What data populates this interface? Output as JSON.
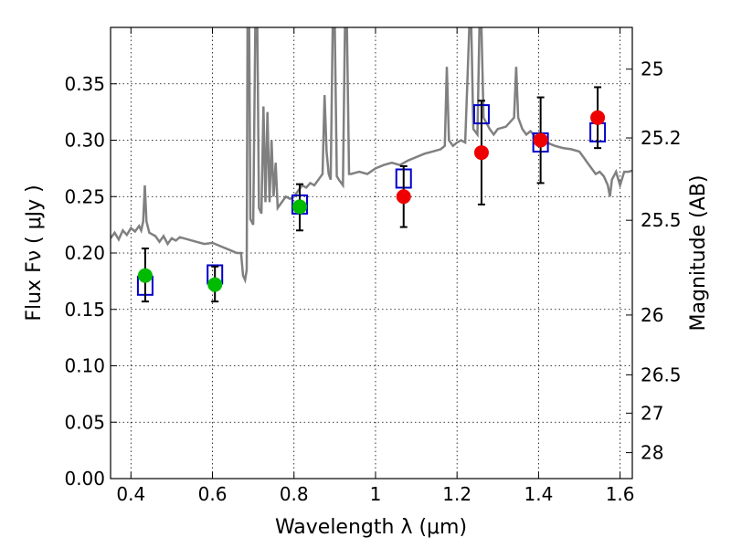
{
  "chart_data": {
    "type": "scatter",
    "xlabel": "Wavelength  λ (μm)",
    "ylabel": "Flux  Fν  ( μJy )",
    "ylabel_right": "Magnitude (AB)",
    "xlim": [
      0.35,
      1.63
    ],
    "ylim": [
      0.0,
      0.4
    ],
    "grid": true,
    "x_ticks": [
      0.4,
      0.6,
      0.8,
      1.0,
      1.2,
      1.4,
      1.6
    ],
    "x_tick_labels": [
      "0.4",
      "0.6",
      "0.8",
      "1",
      "1.2",
      "1.4",
      "1.6"
    ],
    "y_ticks": [
      0.0,
      0.05,
      0.1,
      0.15,
      0.2,
      0.25,
      0.3,
      0.35
    ],
    "y_tick_labels": [
      "0.00",
      "0.05",
      "0.10",
      "0.15",
      "0.20",
      "0.25",
      "0.30",
      "0.35"
    ],
    "right_axis_ticks": [
      {
        "label": "25",
        "flux": 0.363
      },
      {
        "label": "25.2",
        "flux": 0.302
      },
      {
        "label": "25.5",
        "flux": 0.229
      },
      {
        "label": "26",
        "flux": 0.145
      },
      {
        "label": "26.5",
        "flux": 0.092
      },
      {
        "label": "27",
        "flux": 0.058
      },
      {
        "label": "28",
        "flux": 0.023
      }
    ],
    "series": [
      {
        "style": "green-circles",
        "color": "#00bb00",
        "points": [
          {
            "x": 0.435,
            "y": 0.18,
            "err_lo": 0.157,
            "err_hi": 0.204
          },
          {
            "x": 0.606,
            "y": 0.172,
            "err_lo": 0.157,
            "err_hi": 0.188
          },
          {
            "x": 0.814,
            "y": 0.241,
            "err_lo": 0.22,
            "err_hi": 0.261
          }
        ]
      },
      {
        "style": "red-circles",
        "color": "#ee0000",
        "points": [
          {
            "x": 1.069,
            "y": 0.25,
            "err_lo": 0.223,
            "err_hi": 0.277
          },
          {
            "x": 1.26,
            "y": 0.289,
            "err_lo": 0.243,
            "err_hi": 0.335
          },
          {
            "x": 1.405,
            "y": 0.3,
            "err_lo": 0.262,
            "err_hi": 0.338
          },
          {
            "x": 1.545,
            "y": 0.32,
            "err_lo": 0.293,
            "err_hi": 0.347
          }
        ]
      },
      {
        "style": "blue-open-squares",
        "color": "#0000cc",
        "points": [
          {
            "x": 0.435,
            "y": 0.171
          },
          {
            "x": 0.606,
            "y": 0.181
          },
          {
            "x": 0.814,
            "y": 0.243
          },
          {
            "x": 1.069,
            "y": 0.266
          },
          {
            "x": 1.26,
            "y": 0.323
          },
          {
            "x": 1.405,
            "y": 0.298
          },
          {
            "x": 1.545,
            "y": 0.307
          }
        ]
      },
      {
        "style": "gray-line",
        "color": "#808080",
        "points": [
          [
            0.35,
            0.213
          ],
          [
            0.36,
            0.218
          ],
          [
            0.37,
            0.212
          ],
          [
            0.38,
            0.22
          ],
          [
            0.39,
            0.216
          ],
          [
            0.4,
            0.222
          ],
          [
            0.41,
            0.219
          ],
          [
            0.42,
            0.224
          ],
          [
            0.425,
            0.22
          ],
          [
            0.43,
            0.228
          ],
          [
            0.434,
            0.26
          ],
          [
            0.438,
            0.228
          ],
          [
            0.445,
            0.218
          ],
          [
            0.46,
            0.215
          ],
          [
            0.47,
            0.21
          ],
          [
            0.48,
            0.215
          ],
          [
            0.49,
            0.208
          ],
          [
            0.5,
            0.213
          ],
          [
            0.51,
            0.211
          ],
          [
            0.52,
            0.214
          ],
          [
            0.54,
            0.212
          ],
          [
            0.56,
            0.21
          ],
          [
            0.58,
            0.208
          ],
          [
            0.6,
            0.209
          ],
          [
            0.62,
            0.206
          ],
          [
            0.64,
            0.203
          ],
          [
            0.66,
            0.2
          ],
          [
            0.67,
            0.2
          ],
          [
            0.675,
            0.18
          ],
          [
            0.68,
            0.176
          ],
          [
            0.684,
            0.185
          ],
          [
            0.686,
            0.4
          ],
          [
            0.69,
            0.4
          ],
          [
            0.693,
            0.23
          ],
          [
            0.7,
            0.225
          ],
          [
            0.705,
            0.4
          ],
          [
            0.71,
            0.4
          ],
          [
            0.714,
            0.24
          ],
          [
            0.72,
            0.235
          ],
          [
            0.725,
            0.33
          ],
          [
            0.73,
            0.245
          ],
          [
            0.735,
            0.325
          ],
          [
            0.74,
            0.245
          ],
          [
            0.745,
            0.3
          ],
          [
            0.75,
            0.25
          ],
          [
            0.755,
            0.28
          ],
          [
            0.76,
            0.24
          ],
          [
            0.77,
            0.245
          ],
          [
            0.78,
            0.25
          ],
          [
            0.79,
            0.248
          ],
          [
            0.8,
            0.25
          ],
          [
            0.81,
            0.255
          ],
          [
            0.82,
            0.26
          ],
          [
            0.83,
            0.258
          ],
          [
            0.84,
            0.262
          ],
          [
            0.85,
            0.26
          ],
          [
            0.86,
            0.265
          ],
          [
            0.87,
            0.27
          ],
          [
            0.875,
            0.34
          ],
          [
            0.88,
            0.29
          ],
          [
            0.885,
            0.27
          ],
          [
            0.89,
            0.265
          ],
          [
            0.895,
            0.4
          ],
          [
            0.9,
            0.4
          ],
          [
            0.905,
            0.268
          ],
          [
            0.91,
            0.265
          ],
          [
            0.92,
            0.26
          ],
          [
            0.925,
            0.4
          ],
          [
            0.93,
            0.4
          ],
          [
            0.935,
            0.27
          ],
          [
            0.94,
            0.27
          ],
          [
            0.96,
            0.272
          ],
          [
            0.98,
            0.27
          ],
          [
            1.0,
            0.275
          ],
          [
            1.02,
            0.278
          ],
          [
            1.04,
            0.28
          ],
          [
            1.06,
            0.278
          ],
          [
            1.08,
            0.282
          ],
          [
            1.1,
            0.285
          ],
          [
            1.12,
            0.288
          ],
          [
            1.14,
            0.29
          ],
          [
            1.16,
            0.292
          ],
          [
            1.17,
            0.295
          ],
          [
            1.175,
            0.365
          ],
          [
            1.18,
            0.3
          ],
          [
            1.19,
            0.295
          ],
          [
            1.2,
            0.298
          ],
          [
            1.21,
            0.3
          ],
          [
            1.22,
            0.298
          ],
          [
            1.23,
            0.4
          ],
          [
            1.235,
            0.4
          ],
          [
            1.24,
            0.31
          ],
          [
            1.25,
            0.305
          ],
          [
            1.255,
            0.4
          ],
          [
            1.26,
            0.4
          ],
          [
            1.265,
            0.32
          ],
          [
            1.28,
            0.31
          ],
          [
            1.29,
            0.305
          ],
          [
            1.3,
            0.31
          ],
          [
            1.32,
            0.312
          ],
          [
            1.34,
            0.32
          ],
          [
            1.345,
            0.365
          ],
          [
            1.35,
            0.32
          ],
          [
            1.36,
            0.31
          ],
          [
            1.37,
            0.305
          ],
          [
            1.38,
            0.308
          ],
          [
            1.4,
            0.3
          ],
          [
            1.42,
            0.298
          ],
          [
            1.44,
            0.295
          ],
          [
            1.46,
            0.293
          ],
          [
            1.48,
            0.292
          ],
          [
            1.5,
            0.29
          ],
          [
            1.51,
            0.285
          ],
          [
            1.52,
            0.28
          ],
          [
            1.53,
            0.275
          ],
          [
            1.54,
            0.27
          ],
          [
            1.55,
            0.272
          ],
          [
            1.56,
            0.268
          ],
          [
            1.57,
            0.26
          ],
          [
            1.575,
            0.25
          ],
          [
            1.58,
            0.265
          ],
          [
            1.59,
            0.272
          ],
          [
            1.6,
            0.26
          ],
          [
            1.61,
            0.272
          ],
          [
            1.62,
            0.272
          ],
          [
            1.63,
            0.273
          ]
        ]
      }
    ]
  }
}
